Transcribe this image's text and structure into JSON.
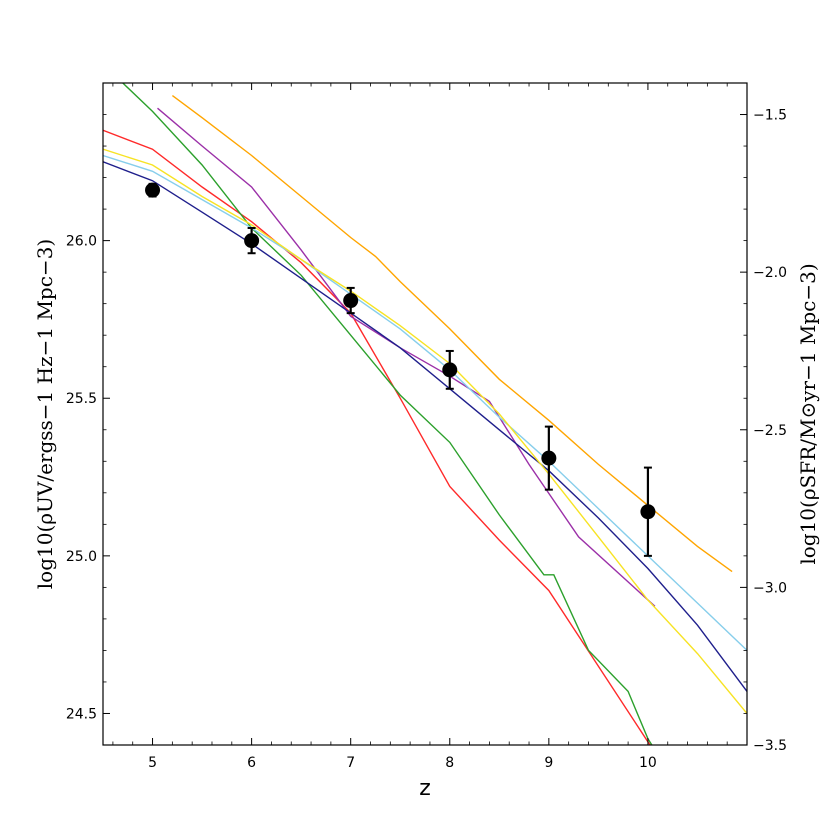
{
  "chart_data": {
    "type": "line",
    "xlabel": "z",
    "ylabel_left": "log10(ρUV/ergss−1 Hz−1 Mpc−3)",
    "ylabel_right": "log10(ρSFR/M⊙yr−1 Mpc−3)",
    "xlim": [
      4.5,
      11.0
    ],
    "ylim_left": [
      24.4,
      26.5
    ],
    "ylim_right": [
      -3.5,
      -1.4
    ],
    "xticks": [
      "5",
      "6",
      "7",
      "8",
      "9",
      "10"
    ],
    "yticks_left": [
      "24.5",
      "25.0",
      "25.5",
      "26.0"
    ],
    "yticks_right": [
      "−1.5",
      "−2.0",
      "−2.5",
      "−3.0",
      "−3.5"
    ],
    "grid": false,
    "observations": {
      "marker": "circle",
      "color": "#000000",
      "points": [
        {
          "x": 5,
          "y": 26.16,
          "err": 0.02
        },
        {
          "x": 6,
          "y": 26.0,
          "err": 0.04
        },
        {
          "x": 7,
          "y": 25.81,
          "err": 0.04
        },
        {
          "x": 8,
          "y": 25.59,
          "err": 0.06
        },
        {
          "x": 9,
          "y": 25.31,
          "err": 0.1
        },
        {
          "x": 10,
          "y": 25.14,
          "err": 0.14
        }
      ]
    },
    "series": [
      {
        "color": "#ff2a2a",
        "x": [
          4.5,
          5.0,
          5.5,
          6.0,
          6.5,
          7.0,
          7.5,
          8.0,
          8.5,
          9.0,
          9.5,
          10.0,
          10.2
        ],
        "y": [
          26.35,
          26.29,
          26.17,
          26.06,
          25.93,
          25.77,
          25.5,
          25.22,
          25.05,
          24.89,
          24.65,
          24.41,
          24.32
        ]
      },
      {
        "color": "#2ca02c",
        "x": [
          4.7,
          5.0,
          5.5,
          6.0,
          6.5,
          7.0,
          7.5,
          8.0,
          8.5,
          8.95,
          9.05,
          9.4,
          9.8,
          10.0,
          10.2
        ],
        "y": [
          26.5,
          26.41,
          26.24,
          26.04,
          25.89,
          25.7,
          25.51,
          25.36,
          25.13,
          24.94,
          24.94,
          24.7,
          24.57,
          24.42,
          24.32
        ]
      },
      {
        "color": "#9b30a8",
        "x": [
          5.05,
          5.5,
          6.0,
          6.5,
          7.0,
          7.5,
          8.0,
          8.4,
          8.8,
          9.3,
          10.07
        ],
        "y": [
          26.42,
          26.3,
          26.17,
          25.97,
          25.76,
          25.66,
          25.57,
          25.49,
          25.29,
          25.06,
          24.84
        ]
      },
      {
        "color": "#1f1f8c",
        "x": [
          4.5,
          5.0,
          5.5,
          6.0,
          6.5,
          7.0,
          7.5,
          8.0,
          8.5,
          9.0,
          9.5,
          10.0,
          10.5,
          11.0
        ],
        "y": [
          26.25,
          26.19,
          26.09,
          25.99,
          25.88,
          25.77,
          25.66,
          25.53,
          25.4,
          25.27,
          25.12,
          24.96,
          24.78,
          24.57
        ]
      },
      {
        "color": "#87ceeb",
        "x": [
          4.5,
          5.0,
          5.5,
          6.0,
          6.5,
          7.0,
          7.5,
          8.0,
          8.5,
          9.0,
          9.5,
          10.0,
          10.5,
          11.0
        ],
        "y": [
          26.27,
          26.22,
          26.13,
          26.04,
          25.94,
          25.83,
          25.72,
          25.59,
          25.44,
          25.3,
          25.15,
          25.0,
          24.85,
          24.7
        ]
      },
      {
        "color": "#f7e324",
        "x": [
          4.5,
          5.0,
          5.5,
          6.0,
          6.5,
          7.0,
          7.5,
          8.0,
          8.5,
          9.0,
          9.5,
          10.0,
          10.5,
          11.0
        ],
        "y": [
          26.29,
          26.24,
          26.14,
          26.05,
          25.94,
          25.84,
          25.73,
          25.61,
          25.45,
          25.26,
          25.06,
          24.86,
          24.69,
          24.5
        ]
      },
      {
        "color": "#ffa500",
        "x": [
          5.2,
          5.5,
          6.0,
          6.5,
          7.0,
          7.25,
          7.5,
          8.0,
          8.5,
          9.0,
          9.5,
          10.0,
          10.5,
          10.85
        ],
        "y": [
          26.46,
          26.39,
          26.27,
          26.14,
          26.01,
          25.95,
          25.87,
          25.72,
          25.56,
          25.43,
          25.29,
          25.16,
          25.03,
          24.95
        ]
      }
    ]
  }
}
